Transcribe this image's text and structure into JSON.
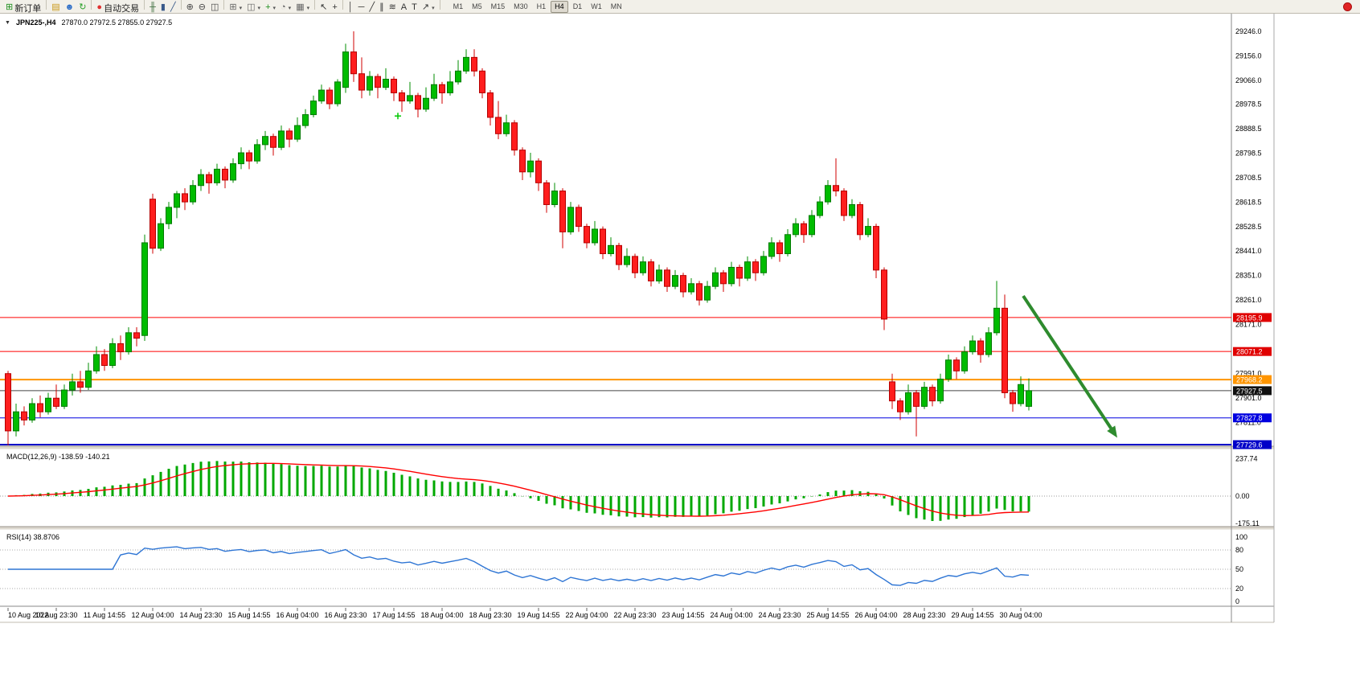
{
  "toolbar": {
    "items": [
      {
        "type": "button",
        "name": "new-order",
        "glyph": "⊞",
        "color": "#1E8E1E",
        "label": "新订单"
      },
      {
        "type": "sep"
      },
      {
        "type": "button",
        "name": "market-watch",
        "glyph": "▤",
        "color": "#C89614"
      },
      {
        "type": "button",
        "name": "community",
        "glyph": "☻",
        "color": "#3070C8"
      },
      {
        "type": "button",
        "name": "refresh",
        "glyph": "↻",
        "color": "#28A028"
      },
      {
        "type": "sep"
      },
      {
        "type": "button",
        "name": "auto-trading",
        "glyph": "●",
        "color": "#E03030",
        "label": "自动交易"
      },
      {
        "type": "sep"
      },
      {
        "type": "button",
        "name": "bars-mode",
        "glyph": "╫",
        "color": "#3A6A3A"
      },
      {
        "type": "button",
        "name": "candles-mode",
        "glyph": "▮",
        "color": "#3A5A8A"
      },
      {
        "type": "button",
        "name": "line-mode",
        "glyph": "╱",
        "color": "#3A5A8A"
      },
      {
        "type": "sep"
      },
      {
        "type": "button",
        "name": "zoom-in",
        "glyph": "⊕",
        "color": "#444444"
      },
      {
        "type": "button",
        "name": "zoom-out",
        "glyph": "⊖",
        "color": "#444444"
      },
      {
        "type": "button",
        "name": "tile-windows",
        "glyph": "◫",
        "color": "#444444"
      },
      {
        "type": "sep"
      },
      {
        "type": "button",
        "name": "new-chart-window",
        "glyph": "⊞",
        "color": "#666666",
        "dropdown": true
      },
      {
        "type": "button",
        "name": "profiles",
        "glyph": "◫",
        "color": "#666666",
        "dropdown": true
      },
      {
        "type": "button",
        "name": "indicators",
        "glyph": "+",
        "color": "#1E8E1E",
        "dropdown": true
      },
      {
        "type": "button",
        "name": "periods",
        "glyph": "◔",
        "color": "#666666",
        "dropdown": true
      },
      {
        "type": "button",
        "name": "templates",
        "glyph": "▦",
        "color": "#666666",
        "dropdown": true
      },
      {
        "type": "sep"
      },
      {
        "type": "button",
        "name": "cursor",
        "glyph": "↖",
        "color": "#333333"
      },
      {
        "type": "button",
        "name": "crosshair",
        "glyph": "+",
        "color": "#333333"
      },
      {
        "type": "sep"
      },
      {
        "type": "button",
        "name": "vertical-line",
        "glyph": "│",
        "color": "#333333"
      },
      {
        "type": "button",
        "name": "horizontal-line",
        "glyph": "─",
        "color": "#333333"
      },
      {
        "type": "button",
        "name": "trend-line",
        "glyph": "╱",
        "color": "#333333"
      },
      {
        "type": "button",
        "name": "channel",
        "glyph": "∥",
        "color": "#333333"
      },
      {
        "type": "button",
        "name": "fibonacci",
        "glyph": "≋",
        "color": "#333333"
      },
      {
        "type": "button",
        "name": "text",
        "glyph": "A",
        "color": "#333333"
      },
      {
        "type": "button",
        "name": "text-label",
        "glyph": "T",
        "color": "#333333"
      },
      {
        "type": "button",
        "name": "arrows",
        "glyph": "↗",
        "color": "#333333",
        "dropdown": true
      },
      {
        "type": "sep"
      }
    ],
    "timeframes": {
      "options": [
        "M1",
        "M5",
        "M15",
        "M30",
        "H1",
        "H4",
        "D1",
        "W1",
        "MN"
      ],
      "active": "H4"
    }
  },
  "chart": {
    "title_arrow": "▼",
    "symbol_period": "JPN225-,H4",
    "ohlc_text": "27870.0 27972.5 27855.0 27927.5"
  },
  "chart_data": {
    "type": "candlestick",
    "symbol": "JPN225-",
    "timeframe": "H4",
    "price_axis": {
      "top_price": 29272,
      "bottom_price": 27729.6,
      "ticks": [
        29246.0,
        29156.0,
        29066.0,
        28978.5,
        28888.5,
        28798.5,
        28708.5,
        28618.5,
        28528.5,
        28441.0,
        28351.0,
        28261.0,
        28171.0,
        27991.0,
        27901.0,
        27811.0
      ]
    },
    "candles": [
      [
        27990,
        28000,
        27725,
        27780
      ],
      [
        27780,
        27880,
        27760,
        27850
      ],
      [
        27850,
        27870,
        27800,
        27820
      ],
      [
        27820,
        27900,
        27810,
        27880
      ],
      [
        27880,
        27910,
        27830,
        27850
      ],
      [
        27850,
        27920,
        27840,
        27900
      ],
      [
        27900,
        27950,
        27860,
        27870
      ],
      [
        27870,
        27950,
        27860,
        27930
      ],
      [
        27930,
        27990,
        27910,
        27960
      ],
      [
        27960,
        28000,
        27920,
        27940
      ],
      [
        27940,
        28030,
        27930,
        28000
      ],
      [
        28000,
        28090,
        27990,
        28060
      ],
      [
        28060,
        28080,
        28000,
        28020
      ],
      [
        28020,
        28120,
        28010,
        28100
      ],
      [
        28100,
        28130,
        28040,
        28070
      ],
      [
        28070,
        28160,
        28060,
        28140
      ],
      [
        28140,
        28160,
        28090,
        28120
      ],
      [
        28130,
        28500,
        28110,
        28470
      ],
      [
        28630,
        28650,
        28430,
        28450
      ],
      [
        28450,
        28560,
        28440,
        28540
      ],
      [
        28540,
        28620,
        28520,
        28600
      ],
      [
        28600,
        28660,
        28560,
        28650
      ],
      [
        28650,
        28670,
        28590,
        28620
      ],
      [
        28620,
        28700,
        28610,
        28680
      ],
      [
        28680,
        28740,
        28660,
        28720
      ],
      [
        28720,
        28730,
        28650,
        28690
      ],
      [
        28690,
        28760,
        28680,
        28740
      ],
      [
        28740,
        28750,
        28670,
        28700
      ],
      [
        28700,
        28780,
        28690,
        28760
      ],
      [
        28760,
        28820,
        28740,
        28800
      ],
      [
        28800,
        28810,
        28740,
        28770
      ],
      [
        28770,
        28850,
        28760,
        28830
      ],
      [
        28830,
        28880,
        28810,
        28860
      ],
      [
        28860,
        28870,
        28790,
        28820
      ],
      [
        28820,
        28900,
        28810,
        28880
      ],
      [
        28880,
        28890,
        28820,
        28850
      ],
      [
        28850,
        28930,
        28840,
        28900
      ],
      [
        28900,
        28960,
        28890,
        28940
      ],
      [
        28940,
        29010,
        28930,
        28990
      ],
      [
        28990,
        29050,
        28980,
        29030
      ],
      [
        29030,
        29040,
        28960,
        28980
      ],
      [
        28980,
        29070,
        28970,
        29060
      ],
      [
        29040,
        29200,
        29020,
        29170
      ],
      [
        29170,
        29246,
        29060,
        29090
      ],
      [
        29090,
        29150,
        29000,
        29030
      ],
      [
        29030,
        29100,
        29010,
        29080
      ],
      [
        29080,
        29090,
        29000,
        29040
      ],
      [
        29040,
        29110,
        29030,
        29070
      ],
      [
        29070,
        29080,
        28990,
        29020
      ],
      [
        29020,
        29030,
        28950,
        28990
      ],
      [
        28990,
        29060,
        28980,
        29010
      ],
      [
        29010,
        29020,
        28930,
        28960
      ],
      [
        28960,
        29040,
        28950,
        29000
      ],
      [
        29000,
        29090,
        28990,
        29050
      ],
      [
        29050,
        29060,
        28980,
        29020
      ],
      [
        29020,
        29100,
        29010,
        29060
      ],
      [
        29060,
        29140,
        29050,
        29100
      ],
      [
        29100,
        29180,
        29090,
        29150
      ],
      [
        29150,
        29180,
        29080,
        29100
      ],
      [
        29100,
        29110,
        29000,
        29020
      ],
      [
        29020,
        29030,
        28900,
        28930
      ],
      [
        28930,
        28990,
        28850,
        28870
      ],
      [
        28870,
        28940,
        28860,
        28910
      ],
      [
        28910,
        28920,
        28790,
        28810
      ],
      [
        28810,
        28820,
        28700,
        28730
      ],
      [
        28730,
        28800,
        28710,
        28770
      ],
      [
        28770,
        28780,
        28660,
        28690
      ],
      [
        28690,
        28700,
        28580,
        28610
      ],
      [
        28610,
        28690,
        28600,
        28660
      ],
      [
        28660,
        28670,
        28450,
        28510
      ],
      [
        28510,
        28620,
        28500,
        28600
      ],
      [
        28600,
        28610,
        28510,
        28530
      ],
      [
        28530,
        28540,
        28450,
        28470
      ],
      [
        28470,
        28550,
        28460,
        28520
      ],
      [
        28520,
        28530,
        28410,
        28430
      ],
      [
        28430,
        28490,
        28420,
        28460
      ],
      [
        28460,
        28470,
        28370,
        28390
      ],
      [
        28390,
        28450,
        28380,
        28420
      ],
      [
        28420,
        28430,
        28340,
        28360
      ],
      [
        28360,
        28420,
        28350,
        28400
      ],
      [
        28400,
        28410,
        28310,
        28330
      ],
      [
        28330,
        28390,
        28320,
        28370
      ],
      [
        28370,
        28380,
        28290,
        28310
      ],
      [
        28310,
        28370,
        28300,
        28350
      ],
      [
        28350,
        28360,
        28270,
        28290
      ],
      [
        28290,
        28340,
        28280,
        28320
      ],
      [
        28320,
        28330,
        28240,
        28260
      ],
      [
        28260,
        28330,
        28250,
        28310
      ],
      [
        28310,
        28380,
        28300,
        28360
      ],
      [
        28360,
        28370,
        28290,
        28320
      ],
      [
        28320,
        28400,
        28310,
        28380
      ],
      [
        28380,
        28390,
        28310,
        28340
      ],
      [
        28340,
        28420,
        28330,
        28400
      ],
      [
        28400,
        28410,
        28330,
        28360
      ],
      [
        28360,
        28440,
        28350,
        28420
      ],
      [
        28420,
        28490,
        28410,
        28470
      ],
      [
        28470,
        28480,
        28400,
        28430
      ],
      [
        28430,
        28520,
        28420,
        28500
      ],
      [
        28500,
        28560,
        28490,
        28540
      ],
      [
        28540,
        28550,
        28470,
        28500
      ],
      [
        28500,
        28590,
        28490,
        28570
      ],
      [
        28570,
        28640,
        28560,
        28620
      ],
      [
        28620,
        28700,
        28610,
        28680
      ],
      [
        28680,
        28780,
        28640,
        28660
      ],
      [
        28660,
        28670,
        28550,
        28570
      ],
      [
        28570,
        28630,
        28560,
        28610
      ],
      [
        28610,
        28620,
        28480,
        28500
      ],
      [
        28500,
        28560,
        28490,
        28530
      ],
      [
        28530,
        28540,
        28340,
        28370
      ],
      [
        28370,
        28380,
        28150,
        28190
      ],
      [
        27960,
        27990,
        27860,
        27890
      ],
      [
        27890,
        27900,
        27820,
        27850
      ],
      [
        27850,
        27950,
        27840,
        27920
      ],
      [
        27920,
        27930,
        27760,
        27870
      ],
      [
        27870,
        27960,
        27860,
        27940
      ],
      [
        27940,
        27950,
        27870,
        27890
      ],
      [
        27890,
        27990,
        27880,
        27970
      ],
      [
        27970,
        28060,
        27960,
        28040
      ],
      [
        28040,
        28050,
        27970,
        28000
      ],
      [
        28000,
        28090,
        27990,
        28070
      ],
      [
        28070,
        28130,
        28060,
        28110
      ],
      [
        28110,
        28120,
        28030,
        28060
      ],
      [
        28060,
        28160,
        28050,
        28140
      ],
      [
        28140,
        28330,
        28130,
        28230
      ],
      [
        28230,
        28280,
        27900,
        27920
      ],
      [
        27920,
        27930,
        27850,
        27880
      ],
      [
        27880,
        27980,
        27870,
        27950
      ],
      [
        27870,
        27972.5,
        27855,
        27927.5
      ]
    ],
    "time_labels": [
      "10 Aug 2022",
      "10 Aug 23:30",
      "11 Aug 14:55",
      "12 Aug 04:00",
      "14 Aug 23:30",
      "15 Aug 14:55",
      "16 Aug 04:00",
      "16 Aug 23:30",
      "17 Aug 14:55",
      "18 Aug 04:00",
      "18 Aug 23:30",
      "19 Aug 14:55",
      "22 Aug 04:00",
      "22 Aug 23:30",
      "23 Aug 14:55",
      "24 Aug 04:00",
      "24 Aug 23:30",
      "25 Aug 14:55",
      "26 Aug 04:00",
      "28 Aug 23:30",
      "29 Aug 14:55",
      "30 Aug 04:00"
    ],
    "hlines": [
      {
        "price": 28195.9,
        "label": "28195.9",
        "color": "#FF0000",
        "tag": "#E00000",
        "w": 1
      },
      {
        "price": 28071.2,
        "label": "28071.2",
        "color": "#FF0000",
        "tag": "#E00000",
        "w": 1
      },
      {
        "price": 27968.2,
        "label": "27968.2",
        "color": "#FF9500",
        "tag": "#FF9500",
        "w": 2
      },
      {
        "price": 27927.5,
        "label": "27927.5",
        "color": "#444444",
        "tag": "#111111",
        "w": 1
      },
      {
        "price": 27827.8,
        "label": "27827.8",
        "color": "#0000E0",
        "tag": "#0000E0",
        "w": 1
      },
      {
        "price": 27729.6,
        "label": "27729.6",
        "color": "#0000C8",
        "tag": "#0000C8",
        "w": 2
      }
    ],
    "arrow": {
      "from_index": 126.3,
      "from_price": 28275,
      "to_index": 138,
      "to_price": 27755,
      "color": "#2E8B2E",
      "width": 4
    },
    "marker": {
      "index": 48.5,
      "price": 28935,
      "color": "#00C800"
    },
    "colors": {
      "up": "#00BC00",
      "up_border": "#007A00",
      "up_wick": "#008C00",
      "down": "#FF1E1E",
      "down_border": "#B40000",
      "down_wick": "#D00000",
      "macd_bar": "#00A800",
      "macd_signal": "#FF0000",
      "rsi_line": "#2E75D4"
    },
    "indicators": {
      "macd": {
        "label": "MACD(12,26,9)",
        "values_text": "-138.59 -140.21",
        "params": [
          12,
          26,
          9
        ],
        "axis_ticks": [
          "237.74",
          "0.00",
          "-175.11"
        ],
        "axis_values": [
          237.74,
          0,
          -175.11
        ]
      },
      "rsi": {
        "label": "RSI(14)",
        "values_text": "38.8706",
        "period": 14,
        "levels": [
          80,
          50,
          20
        ],
        "axis_ticks": [
          "100",
          "80",
          "50",
          "20",
          "0"
        ],
        "axis_values": [
          100,
          80,
          50,
          20,
          0
        ]
      }
    }
  }
}
